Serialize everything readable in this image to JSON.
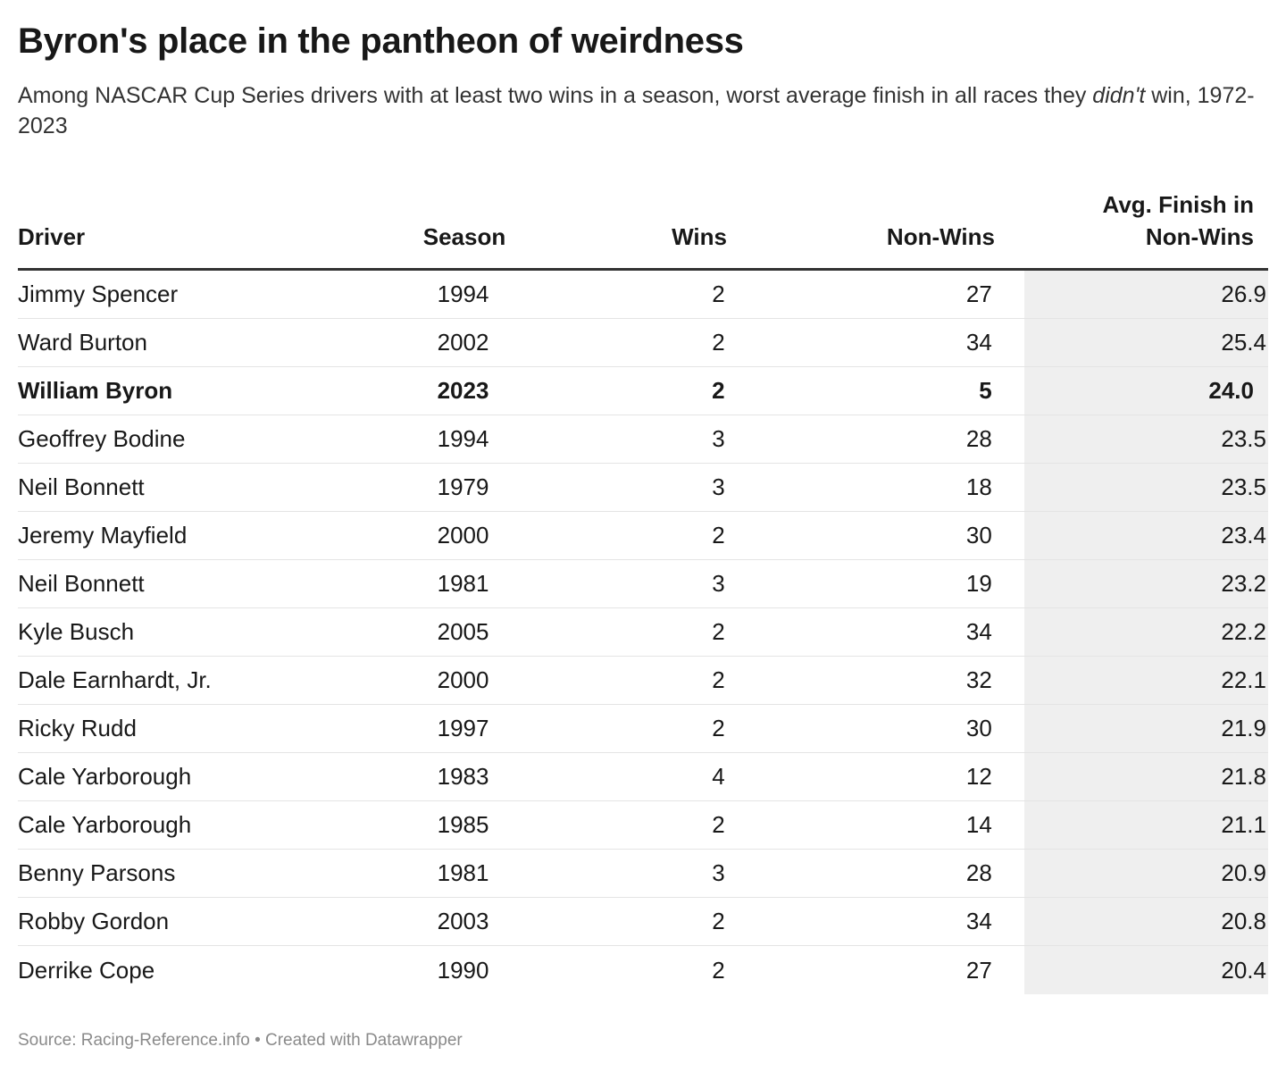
{
  "title": "Byron's place in the pantheon of weirdness",
  "subtitle_pre": "Among NASCAR Cup Series drivers with at least two wins in a season, worst average finish in all races they ",
  "subtitle_em": "didn't",
  "subtitle_post": " win, 1972-2023",
  "columns": {
    "driver": "Driver",
    "season": "Season",
    "wins": "Wins",
    "non_wins": "Non-Wins",
    "avg_line1": "Avg. Finish in",
    "avg_line2": "Non-Wins"
  },
  "footer": {
    "source": "Source: Racing-Reference.info • Created with Datawrapper"
  },
  "highlight_color": "#efefef",
  "chart_data": {
    "type": "table",
    "columns": [
      "Driver",
      "Season",
      "Wins",
      "Non-Wins",
      "Avg. Finish in Non-Wins"
    ],
    "highlighted_row": "William Byron",
    "rows": [
      {
        "driver": "Jimmy Spencer",
        "season": "1994",
        "wins": "2",
        "non_wins": "27",
        "avg": "26.9"
      },
      {
        "driver": "Ward Burton",
        "season": "2002",
        "wins": "2",
        "non_wins": "34",
        "avg": "25.4"
      },
      {
        "driver": "William Byron",
        "season": "2023",
        "wins": "2",
        "non_wins": "5",
        "avg": "24.0"
      },
      {
        "driver": "Geoffrey Bodine",
        "season": "1994",
        "wins": "3",
        "non_wins": "28",
        "avg": "23.5"
      },
      {
        "driver": "Neil Bonnett",
        "season": "1979",
        "wins": "3",
        "non_wins": "18",
        "avg": "23.5"
      },
      {
        "driver": "Jeremy Mayfield",
        "season": "2000",
        "wins": "2",
        "non_wins": "30",
        "avg": "23.4"
      },
      {
        "driver": "Neil Bonnett",
        "season": "1981",
        "wins": "3",
        "non_wins": "19",
        "avg": "23.2"
      },
      {
        "driver": "Kyle Busch",
        "season": "2005",
        "wins": "2",
        "non_wins": "34",
        "avg": "22.2"
      },
      {
        "driver": "Dale Earnhardt, Jr.",
        "season": "2000",
        "wins": "2",
        "non_wins": "32",
        "avg": "22.1"
      },
      {
        "driver": "Ricky Rudd",
        "season": "1997",
        "wins": "2",
        "non_wins": "30",
        "avg": "21.9"
      },
      {
        "driver": "Cale Yarborough",
        "season": "1983",
        "wins": "4",
        "non_wins": "12",
        "avg": "21.8"
      },
      {
        "driver": "Cale Yarborough",
        "season": "1985",
        "wins": "2",
        "non_wins": "14",
        "avg": "21.1"
      },
      {
        "driver": "Benny Parsons",
        "season": "1981",
        "wins": "3",
        "non_wins": "28",
        "avg": "20.9"
      },
      {
        "driver": "Robby Gordon",
        "season": "2003",
        "wins": "2",
        "non_wins": "34",
        "avg": "20.8"
      },
      {
        "driver": "Derrike Cope",
        "season": "1990",
        "wins": "2",
        "non_wins": "27",
        "avg": "20.4"
      }
    ]
  }
}
